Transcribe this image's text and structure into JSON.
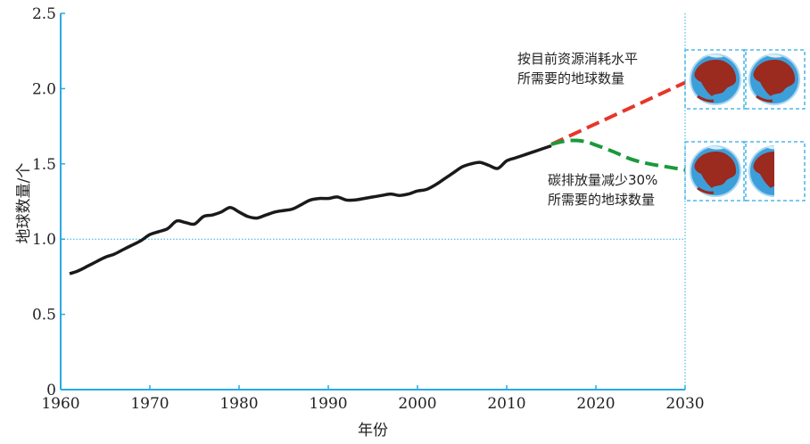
{
  "colors": {
    "axis": "#29abe2",
    "guide": "#29abe2",
    "historical": "#1a1a1a",
    "projection_current": "#e8352a",
    "projection_reduced": "#1a9a3c",
    "globe_ocean": "#3d9fd9",
    "globe_land": "#9b2a1f"
  },
  "chart_data": {
    "type": "line",
    "title": "",
    "xlabel": "年份",
    "ylabel": "地球数量/个",
    "xlim": [
      1960,
      2030
    ],
    "ylim": [
      0,
      2.5
    ],
    "x_ticks": [
      "1960",
      "1970",
      "1980",
      "1990",
      "2000",
      "2010",
      "2020",
      "2030"
    ],
    "y_ticks": [
      "0",
      "0.5",
      "1.0",
      "1.5",
      "2.0",
      "2.5"
    ],
    "reference_line": {
      "y": 1.0,
      "style": "dotted"
    },
    "series": [
      {
        "style": "solid",
        "x": [
          1961,
          1962,
          1963,
          1964,
          1965,
          1966,
          1967,
          1968,
          1969,
          1970,
          1971,
          1972,
          1973,
          1974,
          1975,
          1976,
          1977,
          1978,
          1979,
          1980,
          1981,
          1982,
          1983,
          1984,
          1985,
          1986,
          1987,
          1988,
          1989,
          1990,
          1991,
          1992,
          1993,
          1994,
          1995,
          1996,
          1997,
          1998,
          1999,
          2000,
          2001,
          2002,
          2003,
          2004,
          2005,
          2006,
          2007,
          2008,
          2009,
          2010,
          2011,
          2012,
          2013,
          2014,
          2015
        ],
        "y": [
          0.77,
          0.79,
          0.82,
          0.85,
          0.88,
          0.9,
          0.93,
          0.96,
          0.99,
          1.03,
          1.05,
          1.07,
          1.12,
          1.11,
          1.1,
          1.15,
          1.16,
          1.18,
          1.21,
          1.18,
          1.15,
          1.14,
          1.16,
          1.18,
          1.19,
          1.2,
          1.23,
          1.26,
          1.27,
          1.27,
          1.28,
          1.26,
          1.26,
          1.27,
          1.28,
          1.29,
          1.3,
          1.29,
          1.3,
          1.32,
          1.33,
          1.36,
          1.4,
          1.44,
          1.48,
          1.5,
          1.51,
          1.49,
          1.47,
          1.52,
          1.54,
          1.56,
          1.58,
          1.6,
          1.62
        ]
      },
      {
        "style": "dashed",
        "x": [
          2015,
          2030
        ],
        "y": [
          1.63,
          2.04
        ]
      },
      {
        "style": "dashed",
        "x": [
          2015,
          2016,
          2017,
          2018,
          2019,
          2020,
          2022,
          2024,
          2026,
          2028,
          2030
        ],
        "y": [
          1.63,
          1.645,
          1.655,
          1.655,
          1.645,
          1.625,
          1.58,
          1.53,
          1.5,
          1.48,
          1.46
        ]
      }
    ],
    "annotations": [
      {
        "line1": "按目前资源消耗水平",
        "line2": "所需要的地球数量",
        "globes": 2
      },
      {
        "line1": "碳排放量减少30%",
        "line2": "所需要的地球数量",
        "globes": 1.5
      }
    ]
  }
}
